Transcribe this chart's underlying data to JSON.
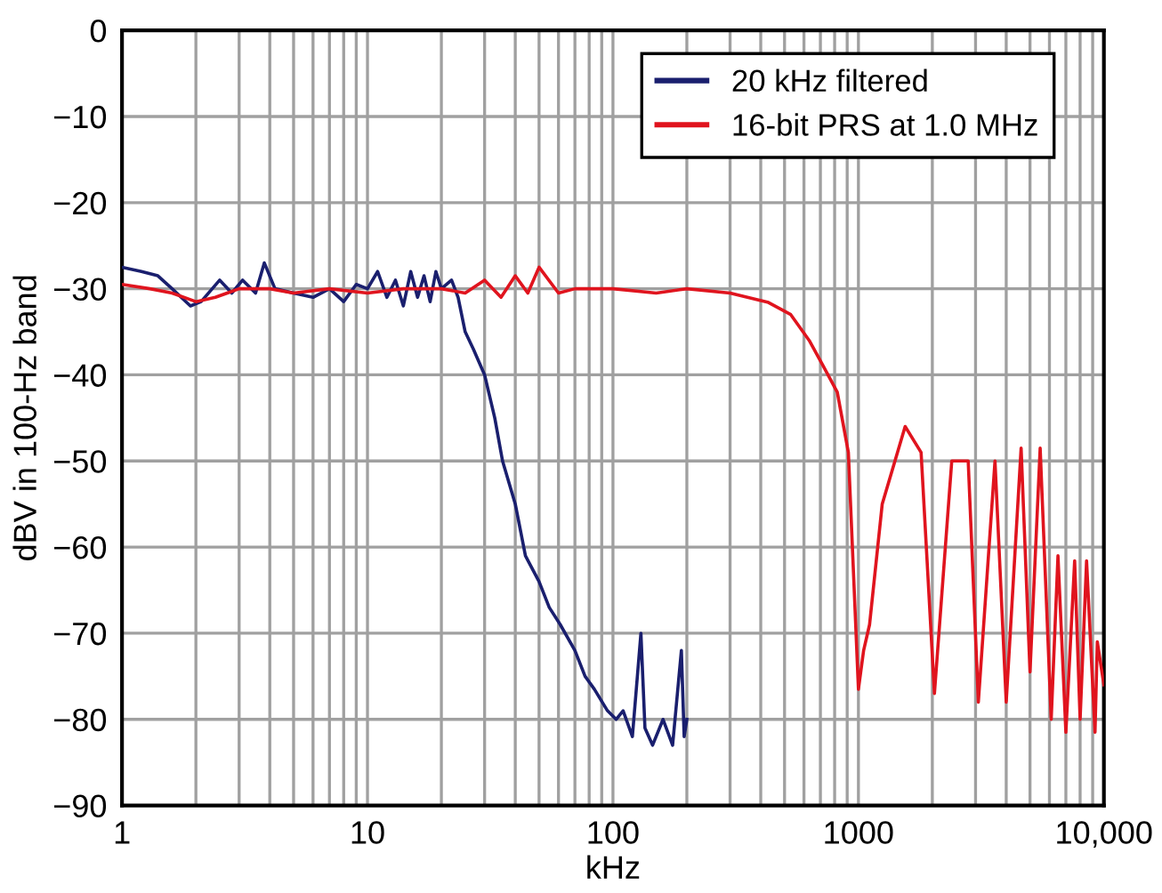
{
  "chart_data": {
    "type": "line",
    "xlabel": "kHz",
    "ylabel": "dBV in 100-Hz band",
    "log": "x",
    "grid": true,
    "legend": "top right",
    "line_style": "solid",
    "xlim": [
      1,
      10000
    ],
    "ylim": [
      -90,
      0
    ],
    "xticks": [
      1,
      10,
      100,
      1000,
      {
        "value": 10000,
        "label": "10,000"
      }
    ],
    "yticks": [
      0,
      {
        "value": -10,
        "label": "−10"
      },
      {
        "value": -20,
        "label": "−20"
      },
      {
        "value": -30,
        "label": "−30"
      },
      {
        "value": -40,
        "label": "−40"
      },
      {
        "value": -50,
        "label": "−50"
      },
      {
        "value": -60,
        "label": "−60"
      },
      {
        "value": -70,
        "label": "−70"
      },
      {
        "value": -80,
        "label": "−80"
      },
      {
        "value": -90,
        "label": "−90"
      }
    ],
    "series": [
      {
        "name": "20 kHz filtered",
        "color": "#1a1f6e",
        "x": [
          1,
          1.2,
          1.4,
          1.6,
          1.9,
          2.1,
          2.5,
          2.8,
          3.1,
          3.5,
          3.8,
          4.2,
          5,
          6,
          7,
          8,
          9,
          10,
          11,
          12,
          13,
          14,
          15,
          16,
          17,
          18,
          19,
          20,
          22,
          23.4,
          25,
          27,
          30,
          33,
          35.5,
          40,
          44,
          50,
          55,
          61,
          70,
          77,
          84,
          95,
          103,
          110,
          120,
          130,
          135,
          145,
          160,
          175,
          190,
          195,
          200
        ],
        "values": [
          -27.5,
          -28,
          -28.5,
          -30,
          -32,
          -31.5,
          -29,
          -30.5,
          -29,
          -30.5,
          -27,
          -30,
          -30.5,
          -31,
          -30,
          -31.5,
          -29.5,
          -30,
          -28,
          -31,
          -29,
          -32,
          -28,
          -31,
          -28.5,
          -31.5,
          -28,
          -30,
          -29,
          -31,
          -35,
          -37,
          -40,
          -45,
          -50,
          -55,
          -61,
          -64,
          -67,
          -69,
          -72,
          -75,
          -76.5,
          -79,
          -80,
          -79,
          -82,
          -70,
          -81,
          -83,
          -80,
          -83,
          -72,
          -82,
          -80
        ]
      },
      {
        "name": "16-bit PRS at 1.0 MHz",
        "color": "#e0141e",
        "x": [
          1,
          1.3,
          1.6,
          2,
          2.4,
          3,
          4,
          5,
          7,
          10,
          14,
          20,
          25,
          30,
          35,
          40,
          45,
          50,
          60,
          70,
          100,
          150,
          200,
          300,
          430,
          530,
          630,
          720,
          820,
          910,
          1000,
          1050,
          1110,
          1250,
          1550,
          1800,
          2040,
          2400,
          2800,
          3080,
          3600,
          4000,
          4600,
          5000,
          5500,
          6100,
          6500,
          7000,
          7600,
          8000,
          8500,
          9200,
          9400,
          10000
        ],
        "values": [
          -29.5,
          -30,
          -30.5,
          -31.5,
          -31,
          -30,
          -30,
          -30.5,
          -30,
          -30.5,
          -30,
          -30,
          -30.5,
          -29,
          -31,
          -28.5,
          -30.5,
          -27.5,
          -30.5,
          -30,
          -30,
          -30.5,
          -30,
          -30.5,
          -31.6,
          -33,
          -36,
          -39,
          -42,
          -49,
          -76.5,
          -72,
          -69,
          -55,
          -46,
          -49,
          -77,
          -50,
          -50,
          -78,
          -50,
          -78,
          -48.5,
          -74.5,
          -48.5,
          -80,
          -61,
          -81.5,
          -61.6,
          -80,
          -61.6,
          -81.5,
          -71,
          -76
        ]
      }
    ]
  }
}
